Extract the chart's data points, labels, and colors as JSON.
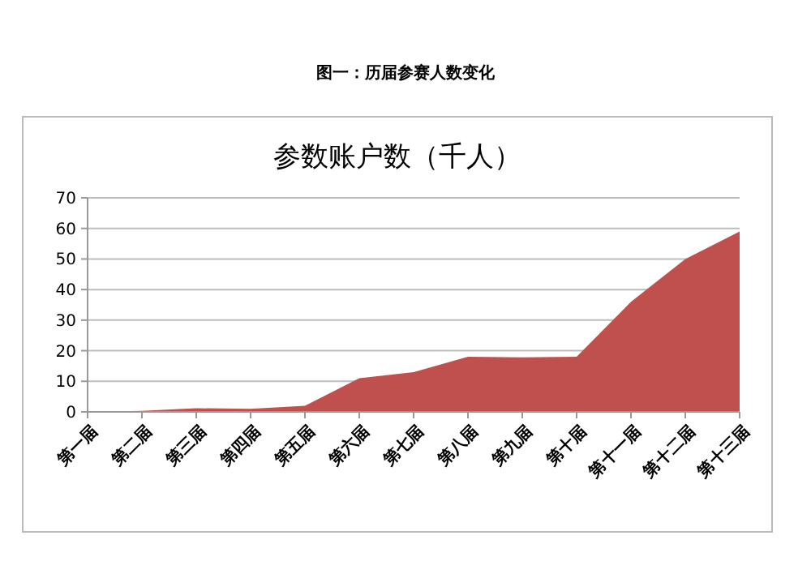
{
  "chart_data": {
    "type": "area",
    "title": "图一：历届参赛人数变化",
    "subtitle": "参数账户数（千人）",
    "categories": [
      "第一届",
      "第二届",
      "第三届",
      "第四届",
      "第五届",
      "第六届",
      "第七届",
      "第八届",
      "第九届",
      "第十届",
      "第十一届",
      "第十二届",
      "第十三届"
    ],
    "values": [
      0,
      0.3,
      1.2,
      1,
      2,
      11,
      13,
      18,
      17.8,
      18,
      36,
      50,
      59
    ],
    "color": "#c0504d",
    "ylim": [
      0,
      70
    ],
    "yticks": [
      0,
      10,
      20,
      30,
      40,
      50,
      60,
      70
    ],
    "grid": "y"
  }
}
